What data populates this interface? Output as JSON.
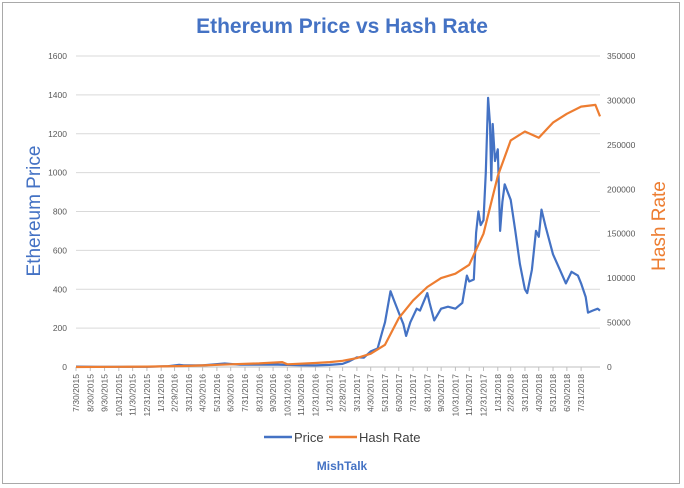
{
  "chart_data": {
    "type": "line",
    "title": "Ethereum Price vs Hash Rate",
    "ylabel": "Ethereum Price",
    "y2label": "Hash Rate",
    "source": "MishTalk",
    "ylim": [
      0,
      1600
    ],
    "y2lim": [
      0,
      350000
    ],
    "yticks": [
      0,
      200,
      400,
      600,
      800,
      1000,
      1200,
      1400,
      1600
    ],
    "y2ticks": [
      0,
      50000,
      100000,
      150000,
      200000,
      250000,
      300000,
      350000
    ],
    "xlim": [
      "7/30/2015",
      "9/10/2018"
    ],
    "x_tick_labels": [
      "7/30/2015",
      "8/30/2015",
      "9/30/2015",
      "10/31/2015",
      "11/30/2015",
      "12/31/2015",
      "1/31/2016",
      "2/29/2016",
      "3/31/2016",
      "4/30/2016",
      "5/31/2016",
      "6/30/2016",
      "7/31/2016",
      "8/31/2016",
      "9/30/2016",
      "10/31/2016",
      "11/30/2016",
      "12/31/2016",
      "1/31/2017",
      "2/28/2017",
      "3/31/2017",
      "4/30/2017",
      "5/31/2017",
      "6/30/2017",
      "7/31/2017",
      "8/31/2017",
      "9/30/2017",
      "10/31/2017",
      "11/30/2017",
      "12/31/2017",
      "1/31/2018",
      "2/28/2018",
      "3/31/2018",
      "4/30/2018",
      "5/31/2018",
      "6/30/2018",
      "7/31/2018"
    ],
    "grid": true,
    "legend_position": "bottom",
    "series": [
      {
        "name": "Price",
        "axis": "left",
        "color": "#4472c4",
        "points": [
          [
            "7/30/2015",
            2
          ],
          [
            "9/15/2015",
            1
          ],
          [
            "10/31/2015",
            1
          ],
          [
            "12/31/2015",
            1
          ],
          [
            "2/15/2016",
            4
          ],
          [
            "3/10/2016",
            11
          ],
          [
            "3/20/2016",
            9
          ],
          [
            "4/30/2016",
            8
          ],
          [
            "6/17/2016",
            18
          ],
          [
            "7/20/2016",
            12
          ],
          [
            "8/31/2016",
            12
          ],
          [
            "9/30/2016",
            13
          ],
          [
            "10/31/2016",
            11
          ],
          [
            "11/30/2016",
            9
          ],
          [
            "12/31/2016",
            8
          ],
          [
            "1/31/2017",
            11
          ],
          [
            "2/28/2017",
            16
          ],
          [
            "3/15/2017",
            30
          ],
          [
            "3/31/2017",
            50
          ],
          [
            "4/15/2017",
            48
          ],
          [
            "4/30/2017",
            80
          ],
          [
            "5/15/2017",
            95
          ],
          [
            "5/25/2017",
            180
          ],
          [
            "5/31/2017",
            230
          ],
          [
            "6/12/2017",
            390
          ],
          [
            "6/20/2017",
            340
          ],
          [
            "6/30/2017",
            280
          ],
          [
            "7/10/2017",
            220
          ],
          [
            "7/16/2017",
            160
          ],
          [
            "7/25/2017",
            230
          ],
          [
            "8/8/2017",
            300
          ],
          [
            "8/15/2017",
            290
          ],
          [
            "8/31/2017",
            380
          ],
          [
            "9/5/2017",
            330
          ],
          [
            "9/15/2017",
            240
          ],
          [
            "9/30/2017",
            300
          ],
          [
            "10/15/2017",
            310
          ],
          [
            "10/31/2017",
            300
          ],
          [
            "11/15/2017",
            330
          ],
          [
            "11/25/2017",
            470
          ],
          [
            "11/30/2017",
            440
          ],
          [
            "12/10/2017",
            450
          ],
          [
            "12/15/2017",
            690
          ],
          [
            "12/20/2017",
            800
          ],
          [
            "12/25/2017",
            730
          ],
          [
            "12/31/2017",
            755
          ],
          [
            "1/5/2018",
            1000
          ],
          [
            "1/10/2018",
            1385
          ],
          [
            "1/14/2018",
            1250
          ],
          [
            "1/17/2018",
            960
          ],
          [
            "1/20/2018",
            1250
          ],
          [
            "1/25/2018",
            1060
          ],
          [
            "1/31/2018",
            1120
          ],
          [
            "2/5/2018",
            700
          ],
          [
            "2/10/2018",
            850
          ],
          [
            "2/15/2018",
            940
          ],
          [
            "2/28/2018",
            860
          ],
          [
            "3/10/2018",
            700
          ],
          [
            "3/20/2018",
            530
          ],
          [
            "3/31/2018",
            400
          ],
          [
            "4/5/2018",
            380
          ],
          [
            "4/15/2018",
            500
          ],
          [
            "4/24/2018",
            700
          ],
          [
            "4/30/2018",
            670
          ],
          [
            "5/6/2018",
            810
          ],
          [
            "5/15/2018",
            720
          ],
          [
            "5/31/2018",
            580
          ],
          [
            "6/15/2018",
            500
          ],
          [
            "6/28/2018",
            430
          ],
          [
            "7/10/2018",
            490
          ],
          [
            "7/24/2018",
            470
          ],
          [
            "7/31/2018",
            430
          ],
          [
            "8/10/2018",
            360
          ],
          [
            "8/15/2018",
            280
          ],
          [
            "8/25/2018",
            290
          ],
          [
            "9/5/2018",
            300
          ],
          [
            "9/10/2018",
            290
          ]
        ]
      },
      {
        "name": "Hash Rate",
        "axis": "right",
        "color": "#ed7d31",
        "points": [
          [
            "7/30/2015",
            0
          ],
          [
            "10/31/2015",
            200
          ],
          [
            "12/31/2015",
            400
          ],
          [
            "3/31/2016",
            1200
          ],
          [
            "4/30/2016",
            1800
          ],
          [
            "6/30/2016",
            3000
          ],
          [
            "8/31/2016",
            4000
          ],
          [
            "10/20/2016",
            5500
          ],
          [
            "10/31/2016",
            3000
          ],
          [
            "12/31/2016",
            4500
          ],
          [
            "1/31/2017",
            5500
          ],
          [
            "2/28/2017",
            7000
          ],
          [
            "3/31/2017",
            10000
          ],
          [
            "4/30/2017",
            15000
          ],
          [
            "5/31/2017",
            25000
          ],
          [
            "6/30/2017",
            55000
          ],
          [
            "7/31/2017",
            75000
          ],
          [
            "8/31/2017",
            90000
          ],
          [
            "9/30/2017",
            100000
          ],
          [
            "10/31/2017",
            105000
          ],
          [
            "11/30/2017",
            115000
          ],
          [
            "12/31/2017",
            150000
          ],
          [
            "1/31/2018",
            215000
          ],
          [
            "2/28/2018",
            255000
          ],
          [
            "3/31/2018",
            265000
          ],
          [
            "4/30/2018",
            258000
          ],
          [
            "5/31/2018",
            275000
          ],
          [
            "6/30/2018",
            285000
          ],
          [
            "7/31/2018",
            293000
          ],
          [
            "8/31/2018",
            295000
          ],
          [
            "9/10/2018",
            282000
          ]
        ]
      }
    ]
  }
}
